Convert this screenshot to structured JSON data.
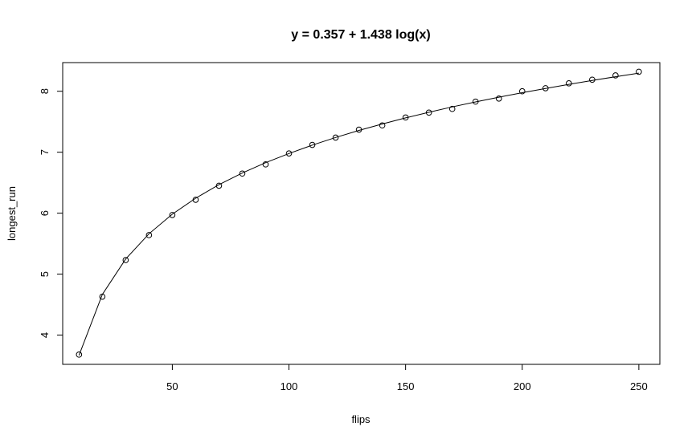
{
  "chart_data": {
    "type": "scatter",
    "title": "y = 0.357 + 1.438 log(x)",
    "xlabel": "flips",
    "ylabel": "longest_run",
    "xlim": [
      3,
      259
    ],
    "ylim": [
      3.52,
      8.47
    ],
    "xticks": [
      50,
      100,
      150,
      200,
      250
    ],
    "yticks": [
      4,
      5,
      6,
      7,
      8
    ],
    "grid": false,
    "series": [
      {
        "kind": "points",
        "x": [
          10,
          20,
          30,
          40,
          50,
          60,
          70,
          80,
          90,
          100,
          110,
          120,
          130,
          140,
          150,
          160,
          170,
          180,
          190,
          200,
          210,
          220,
          230,
          240,
          250
        ],
        "y": [
          3.68,
          4.63,
          5.23,
          5.64,
          5.97,
          6.22,
          6.45,
          6.65,
          6.8,
          6.98,
          7.12,
          7.24,
          7.37,
          7.44,
          7.57,
          7.65,
          7.71,
          7.83,
          7.88,
          8.0,
          8.05,
          8.13,
          8.19,
          8.26,
          8.32
        ]
      },
      {
        "kind": "fitted-line",
        "x": [
          10,
          20,
          30,
          40,
          50,
          60,
          70,
          80,
          90,
          100,
          110,
          120,
          130,
          140,
          150,
          160,
          170,
          180,
          190,
          200,
          210,
          220,
          230,
          240,
          250
        ],
        "y": [
          3.668,
          4.665,
          5.248,
          5.662,
          5.983,
          6.245,
          6.467,
          6.659,
          6.828,
          6.979,
          7.116,
          7.242,
          7.357,
          7.463,
          7.563,
          7.655,
          7.743,
          7.825,
          7.902,
          7.976,
          8.046,
          8.113,
          8.177,
          8.238,
          8.297
        ]
      }
    ]
  }
}
